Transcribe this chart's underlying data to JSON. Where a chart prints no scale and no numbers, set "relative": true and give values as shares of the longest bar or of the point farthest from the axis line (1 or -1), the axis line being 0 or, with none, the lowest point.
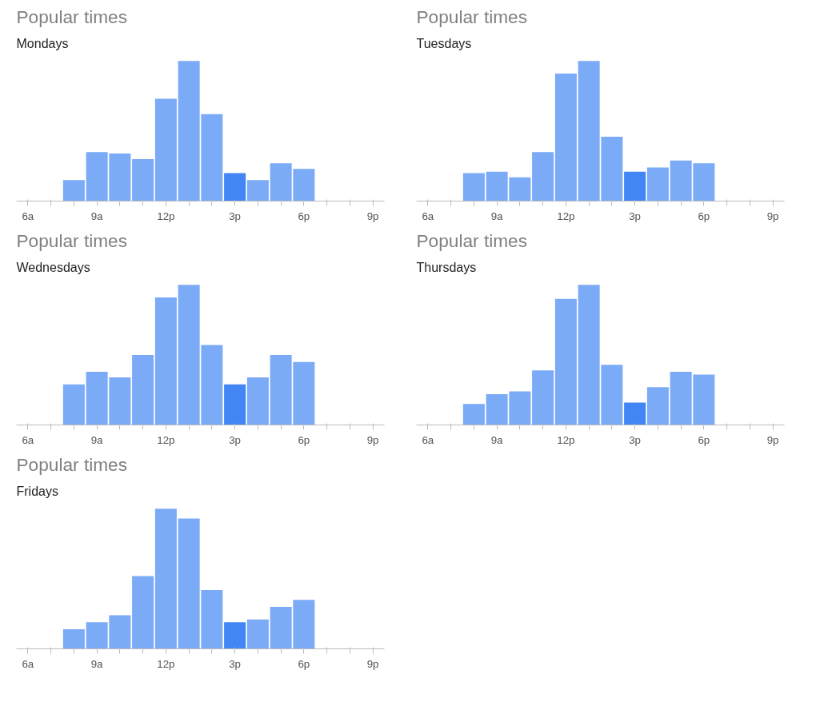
{
  "chart_data": [
    {
      "type": "bar",
      "title": "Popular times",
      "subtitle": "Mondays",
      "relative": true,
      "categories": [
        "6a",
        null,
        null,
        "9a",
        null,
        null,
        "12p",
        null,
        null,
        "3p",
        null,
        null,
        "6p",
        null,
        null,
        "9p"
      ],
      "values": [
        null,
        null,
        0.15,
        0.35,
        0.34,
        0.3,
        0.73,
        1,
        0.62,
        0.2,
        0.15,
        0.27,
        0.23,
        null,
        null,
        null
      ],
      "colors": [
        "#7baaf7",
        "#7baaf7",
        "#7baaf7",
        "#7baaf7",
        "#7baaf7",
        "#7baaf7",
        "#7baaf7",
        "#7baaf7",
        "#7baaf7",
        "#4285f4",
        "#7baaf7",
        "#7baaf7",
        "#7baaf7",
        "#7baaf7",
        "#7baaf7",
        "#7baaf7"
      ]
    },
    {
      "type": "bar",
      "title": "Popular times",
      "subtitle": "Tuesdays",
      "relative": true,
      "categories": [
        "6a",
        null,
        null,
        "9a",
        null,
        null,
        "12p",
        null,
        null,
        "3p",
        null,
        null,
        "6p",
        null,
        null,
        "9p"
      ],
      "values": [
        null,
        null,
        0.2,
        0.21,
        0.17,
        0.35,
        0.91,
        1,
        0.46,
        0.21,
        0.24,
        0.29,
        0.27,
        null,
        null,
        null
      ],
      "colors": [
        "#7baaf7",
        "#7baaf7",
        "#7baaf7",
        "#7baaf7",
        "#7baaf7",
        "#7baaf7",
        "#7baaf7",
        "#7baaf7",
        "#7baaf7",
        "#4285f4",
        "#7baaf7",
        "#7baaf7",
        "#7baaf7",
        "#7baaf7",
        "#7baaf7",
        "#7baaf7"
      ]
    },
    {
      "type": "bar",
      "title": "Popular times",
      "subtitle": "Wednesdays",
      "relative": true,
      "categories": [
        "6a",
        null,
        null,
        "9a",
        null,
        null,
        "12p",
        null,
        null,
        "3p",
        null,
        null,
        "6p",
        null,
        null,
        "9p"
      ],
      "values": [
        null,
        null,
        0.29,
        0.38,
        0.34,
        0.5,
        0.91,
        1,
        0.57,
        0.29,
        0.34,
        0.5,
        0.45,
        null,
        null,
        null
      ],
      "colors": [
        "#7baaf7",
        "#7baaf7",
        "#7baaf7",
        "#7baaf7",
        "#7baaf7",
        "#7baaf7",
        "#7baaf7",
        "#7baaf7",
        "#7baaf7",
        "#4285f4",
        "#7baaf7",
        "#7baaf7",
        "#7baaf7",
        "#7baaf7",
        "#7baaf7",
        "#7baaf7"
      ]
    },
    {
      "type": "bar",
      "title": "Popular times",
      "subtitle": "Thursdays",
      "relative": true,
      "categories": [
        "6a",
        null,
        null,
        "9a",
        null,
        null,
        "12p",
        null,
        null,
        "3p",
        null,
        null,
        "6p",
        null,
        null,
        "9p"
      ],
      "values": [
        null,
        null,
        0.15,
        0.22,
        0.24,
        0.39,
        0.9,
        1,
        0.43,
        0.16,
        0.27,
        0.38,
        0.36,
        null,
        null,
        null
      ],
      "colors": [
        "#7baaf7",
        "#7baaf7",
        "#7baaf7",
        "#7baaf7",
        "#7baaf7",
        "#7baaf7",
        "#7baaf7",
        "#7baaf7",
        "#7baaf7",
        "#4285f4",
        "#7baaf7",
        "#7baaf7",
        "#7baaf7",
        "#7baaf7",
        "#7baaf7",
        "#7baaf7"
      ]
    },
    {
      "type": "bar",
      "title": "Popular times",
      "subtitle": "Fridays",
      "relative": true,
      "categories": [
        "6a",
        null,
        null,
        "9a",
        null,
        null,
        "12p",
        null,
        null,
        "3p",
        null,
        null,
        "6p",
        null,
        null,
        "9p"
      ],
      "values": [
        null,
        null,
        0.14,
        0.19,
        0.24,
        0.52,
        1,
        0.93,
        0.42,
        0.19,
        0.21,
        0.3,
        0.35,
        null,
        null,
        null
      ],
      "colors": [
        "#7baaf7",
        "#7baaf7",
        "#7baaf7",
        "#7baaf7",
        "#7baaf7",
        "#7baaf7",
        "#7baaf7",
        "#7baaf7",
        "#7baaf7",
        "#4285f4",
        "#7baaf7",
        "#7baaf7",
        "#7baaf7",
        "#7baaf7",
        "#7baaf7",
        "#7baaf7"
      ]
    }
  ]
}
